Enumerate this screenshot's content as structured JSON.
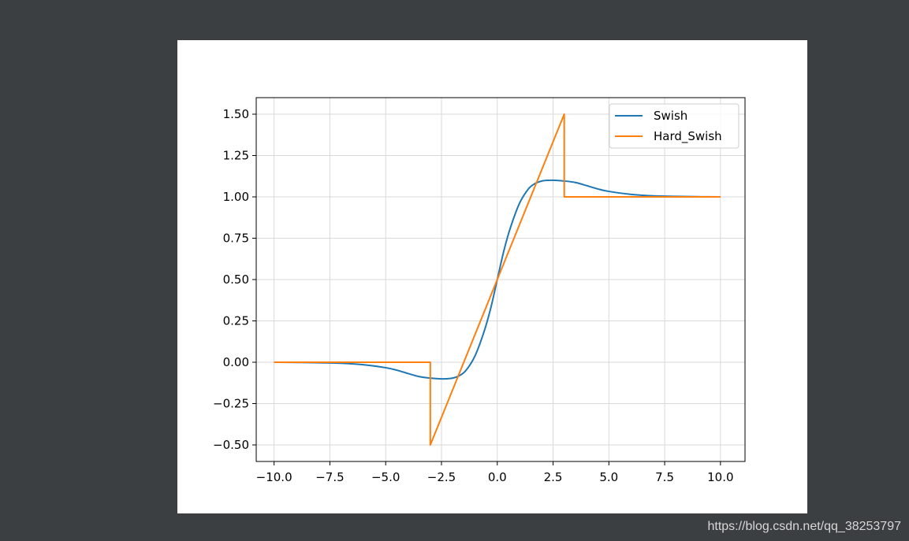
{
  "watermark": "https://blog.csdn.net/qq_38253797",
  "chart_data": {
    "type": "line",
    "title": "",
    "xlabel": "",
    "ylabel": "",
    "xlim": [
      -10.8,
      11.1
    ],
    "ylim": [
      -0.6,
      1.6
    ],
    "grid": true,
    "legend_position": "top-right",
    "x_ticks": [
      -10,
      -7.5,
      -5,
      -2.5,
      0,
      2.5,
      5,
      7.5,
      10
    ],
    "x_tick_labels": [
      "−10.0",
      "−7.5",
      "−5.0",
      "−2.5",
      "0.0",
      "2.5",
      "5.0",
      "7.5",
      "10.0"
    ],
    "y_ticks": [
      -0.5,
      -0.25,
      0,
      0.25,
      0.5,
      0.75,
      1,
      1.25,
      1.5
    ],
    "y_tick_labels": [
      "−0.50",
      "−0.25",
      "0.00",
      "0.25",
      "0.50",
      "0.75",
      "1.00",
      "1.25",
      "1.50"
    ],
    "series": [
      {
        "name": "Swish",
        "color": "#1f77b4",
        "x": [
          -10,
          -9,
          -8,
          -7,
          -6,
          -5,
          -4.5,
          -4,
          -3.5,
          -3,
          -2.6,
          -2.3,
          -2,
          -1.7,
          -1.4,
          -1,
          -0.6,
          -0.3,
          0,
          0.3,
          0.6,
          1,
          1.4,
          1.7,
          2,
          2.3,
          2.6,
          3,
          3.5,
          4,
          4.5,
          5,
          6,
          7,
          8,
          9,
          10
        ],
        "y": [
          0.0,
          -0.001,
          -0.003,
          -0.006,
          -0.015,
          -0.033,
          -0.048,
          -0.068,
          -0.087,
          -0.096,
          -0.1,
          -0.1,
          -0.096,
          -0.081,
          -0.049,
          0.038,
          0.182,
          0.323,
          0.5,
          0.677,
          0.818,
          0.962,
          1.049,
          1.081,
          1.096,
          1.1,
          1.1,
          1.096,
          1.087,
          1.068,
          1.048,
          1.033,
          1.015,
          1.006,
          1.003,
          1.001,
          1.0
        ]
      },
      {
        "name": "Hard_Swish",
        "color": "#ff7f0e",
        "x": [
          -10,
          -3,
          -3,
          3,
          3,
          10
        ],
        "y": [
          0.0,
          0.0,
          -0.5,
          1.5,
          1.0,
          1.0
        ]
      }
    ]
  }
}
